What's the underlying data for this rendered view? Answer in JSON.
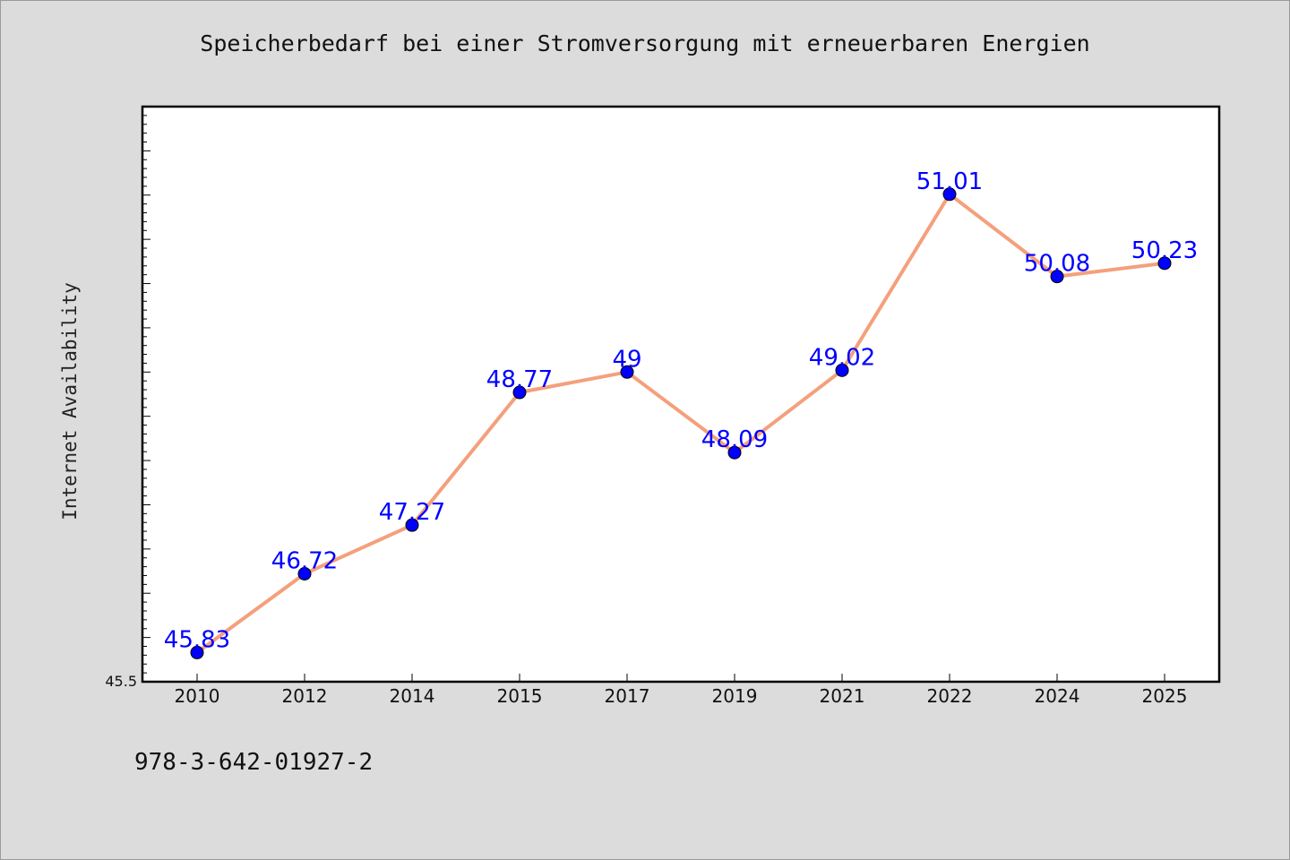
{
  "chart_data": {
    "type": "line",
    "title": "Speicherbedarf bei einer Stromversorgung mit erneuerbaren Energien",
    "xlabel": "",
    "ylabel": "Internet Availability",
    "categories": [
      "2010",
      "2012",
      "2014",
      "2015",
      "2017",
      "2019",
      "2021",
      "2022",
      "2024",
      "2025"
    ],
    "series": [
      {
        "values": [
          45.83,
          46.72,
          47.27,
          48.77,
          49,
          48.09,
          49.02,
          51.01,
          50.08,
          50.23
        ],
        "labels": [
          "45.83",
          "46.72",
          "47.27",
          "48.77",
          "49",
          "48.09",
          "49.02",
          "51.01",
          "50.08",
          "50.23"
        ]
      }
    ],
    "ylim": [
      45.5,
      52.0
    ],
    "ytick_labels": [
      "45.5"
    ],
    "line_color": "#f4a07c",
    "marker_color": "#0000ff",
    "label_color": "#0000ff",
    "grid": false,
    "legend": "none"
  },
  "footnote": "978-3-642-01927-2"
}
